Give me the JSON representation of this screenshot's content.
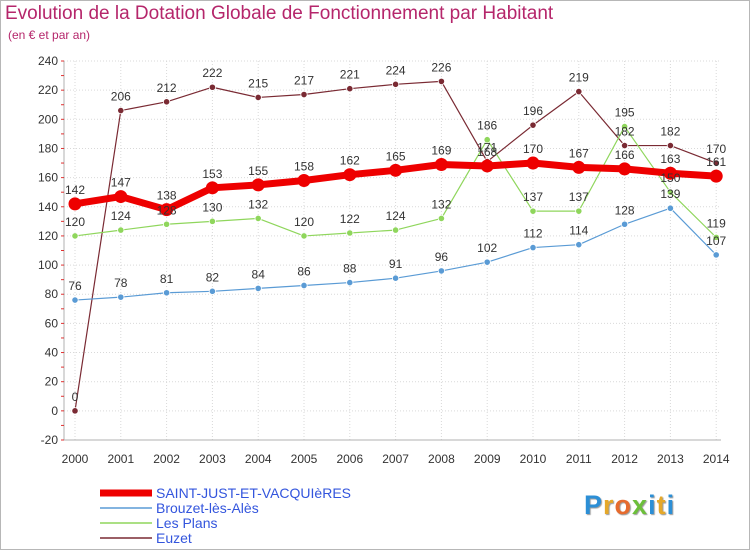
{
  "title": "Evolution de la Dotation Globale de Fonctionnement par Habitant",
  "subtitle": "(en € et par an)",
  "logo": "Proxiti",
  "chart_data": {
    "type": "line",
    "title": "Evolution de la Dotation Globale de Fonctionnement par Habitant",
    "subtitle": "(en € et par an)",
    "xlabel": "",
    "ylabel": "",
    "ylim": [
      -20,
      240
    ],
    "yticks": [
      -20,
      0,
      20,
      40,
      60,
      80,
      100,
      120,
      140,
      160,
      180,
      200,
      220,
      240
    ],
    "grid": true,
    "legend_position": "bottom-left",
    "x": [
      "2000",
      "2001",
      "2002",
      "2003",
      "2004",
      "2005",
      "2006",
      "2007",
      "2008",
      "2009",
      "2010",
      "2011",
      "2012",
      "2013",
      "2014"
    ],
    "series": [
      {
        "name": "Euzet",
        "color": "#7a2a33",
        "values": [
          0,
          206,
          212,
          222,
          215,
          217,
          221,
          224,
          226,
          171,
          196,
          219,
          182,
          182,
          170
        ],
        "labels": [
          "0",
          "206",
          "212",
          "222",
          "215",
          "217",
          "221",
          "224",
          "226",
          "171",
          "196",
          "219",
          "182",
          "182",
          "170"
        ]
      },
      {
        "name": "Les Plans",
        "color": "#8fd65c",
        "values": [
          120,
          124,
          128,
          130,
          132,
          120,
          122,
          124,
          132,
          186,
          137,
          137,
          195,
          150,
          119
        ],
        "labels": [
          "120",
          "124",
          "128",
          "130",
          "132",
          "120",
          "122",
          "124",
          "132",
          "186",
          "137",
          "137",
          "195",
          "150",
          "119"
        ]
      },
      {
        "name": "Brouzet-lès-Alès",
        "color": "#5a9bd5",
        "values": [
          76,
          78,
          81,
          82,
          84,
          86,
          88,
          91,
          96,
          102,
          112,
          114,
          128,
          139,
          107
        ],
        "labels": [
          "76",
          "78",
          "81",
          "82",
          "84",
          "86",
          "88",
          "91",
          "96",
          "102",
          "112",
          "114",
          "128",
          "139",
          "107"
        ]
      },
      {
        "name": "SAINT-JUST-ET-VACQUIèRES",
        "color": "#ee0000",
        "values": [
          142,
          147,
          138,
          153,
          155,
          158,
          162,
          165,
          169,
          168,
          170,
          167,
          166,
          163,
          161
        ],
        "labels": [
          "142",
          "147",
          "138",
          "153",
          "155",
          "158",
          "162",
          "165",
          "169",
          "168",
          "170",
          "167",
          "166",
          "163",
          "161"
        ]
      }
    ],
    "legend": [
      {
        "name": "SAINT-JUST-ET-VACQUIèRES",
        "color": "#ee0000"
      },
      {
        "name": "Brouzet-lès-Alès",
        "color": "#5a9bd5"
      },
      {
        "name": "Les Plans",
        "color": "#8fd65c"
      },
      {
        "name": "Euzet",
        "color": "#7a2a33"
      }
    ]
  }
}
